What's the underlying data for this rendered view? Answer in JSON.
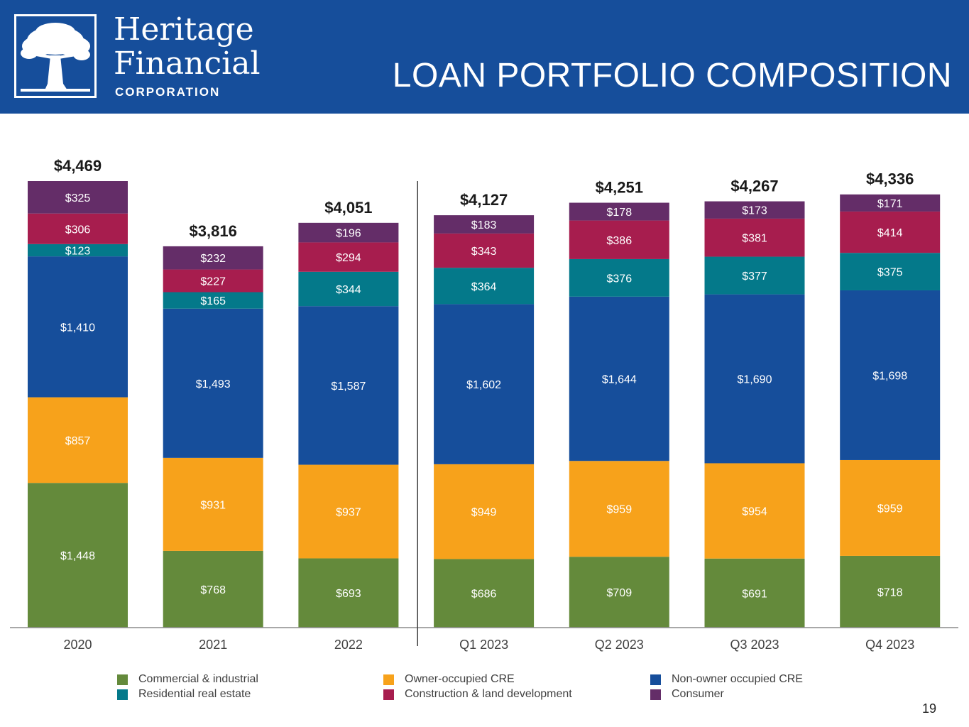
{
  "header": {
    "brand_line1": "Heritage",
    "brand_line2": "Financial",
    "brand_line3": "CORPORATION",
    "title": "LOAN PORTFOLIO COMPOSITION",
    "logo_icon": "oak-tree-icon",
    "background_color": "#164e9b"
  },
  "chart_data": {
    "type": "bar",
    "stacked": true,
    "categories": [
      "2020",
      "2021",
      "2022",
      "Q1 2023",
      "Q2 2023",
      "Q3 2023",
      "Q4 2023"
    ],
    "series": [
      {
        "name": "Commercial & industrial",
        "color": "#648a3b",
        "values": [
          1448,
          768,
          693,
          686,
          709,
          691,
          718
        ],
        "labels": [
          "$1,448",
          "$768",
          "$693",
          "$686",
          "$709",
          "$691",
          "$718"
        ]
      },
      {
        "name": "Owner-occupied CRE",
        "color": "#f7a21b",
        "values": [
          857,
          931,
          937,
          949,
          959,
          954,
          959
        ],
        "labels": [
          "$857",
          "$931",
          "$937",
          "$949",
          "$959",
          "$954",
          "$959"
        ]
      },
      {
        "name": "Non-owner occupied CRE",
        "color": "#164e9b",
        "values": [
          1410,
          1493,
          1587,
          1602,
          1644,
          1690,
          1698
        ],
        "labels": [
          "$1,410",
          "$1,493",
          "$1,587",
          "$1,602",
          "$1,644",
          "$1,690",
          "$1,698"
        ]
      },
      {
        "name": "Residential real estate",
        "color": "#04798a",
        "values": [
          123,
          165,
          344,
          364,
          376,
          377,
          375
        ],
        "labels": [
          "$123",
          "$165",
          "$344",
          "$364",
          "$376",
          "$377",
          "$375"
        ]
      },
      {
        "name": "Construction & land development",
        "color": "#a71d4e",
        "values": [
          306,
          227,
          294,
          343,
          386,
          381,
          414
        ],
        "labels": [
          "$306",
          "$227",
          "$294",
          "$343",
          "$386",
          "$381",
          "$414"
        ]
      },
      {
        "name": "Consumer",
        "color": "#642d68",
        "values": [
          325,
          232,
          196,
          183,
          178,
          173,
          171
        ],
        "labels": [
          "$325",
          "$232",
          "$196",
          "$183",
          "$178",
          "$173",
          "$171"
        ]
      }
    ],
    "totals": [
      4469,
      3816,
      4051,
      4127,
      4251,
      4267,
      4336
    ],
    "total_labels": [
      "$4,469",
      "$3,816",
      "$4,051",
      "$4,127",
      "$4,251",
      "$4,267",
      "$4,336"
    ],
    "ylim": [
      0,
      4469
    ],
    "divider_after_category": "2022",
    "legend": {
      "rows": [
        [
          "Commercial & industrial",
          "Owner-occupied CRE",
          "Non-owner occupied CRE"
        ],
        [
          "Residential real estate",
          "Construction & land development",
          "Consumer"
        ]
      ],
      "position": "bottom"
    },
    "grid": false
  },
  "page_number": "19"
}
